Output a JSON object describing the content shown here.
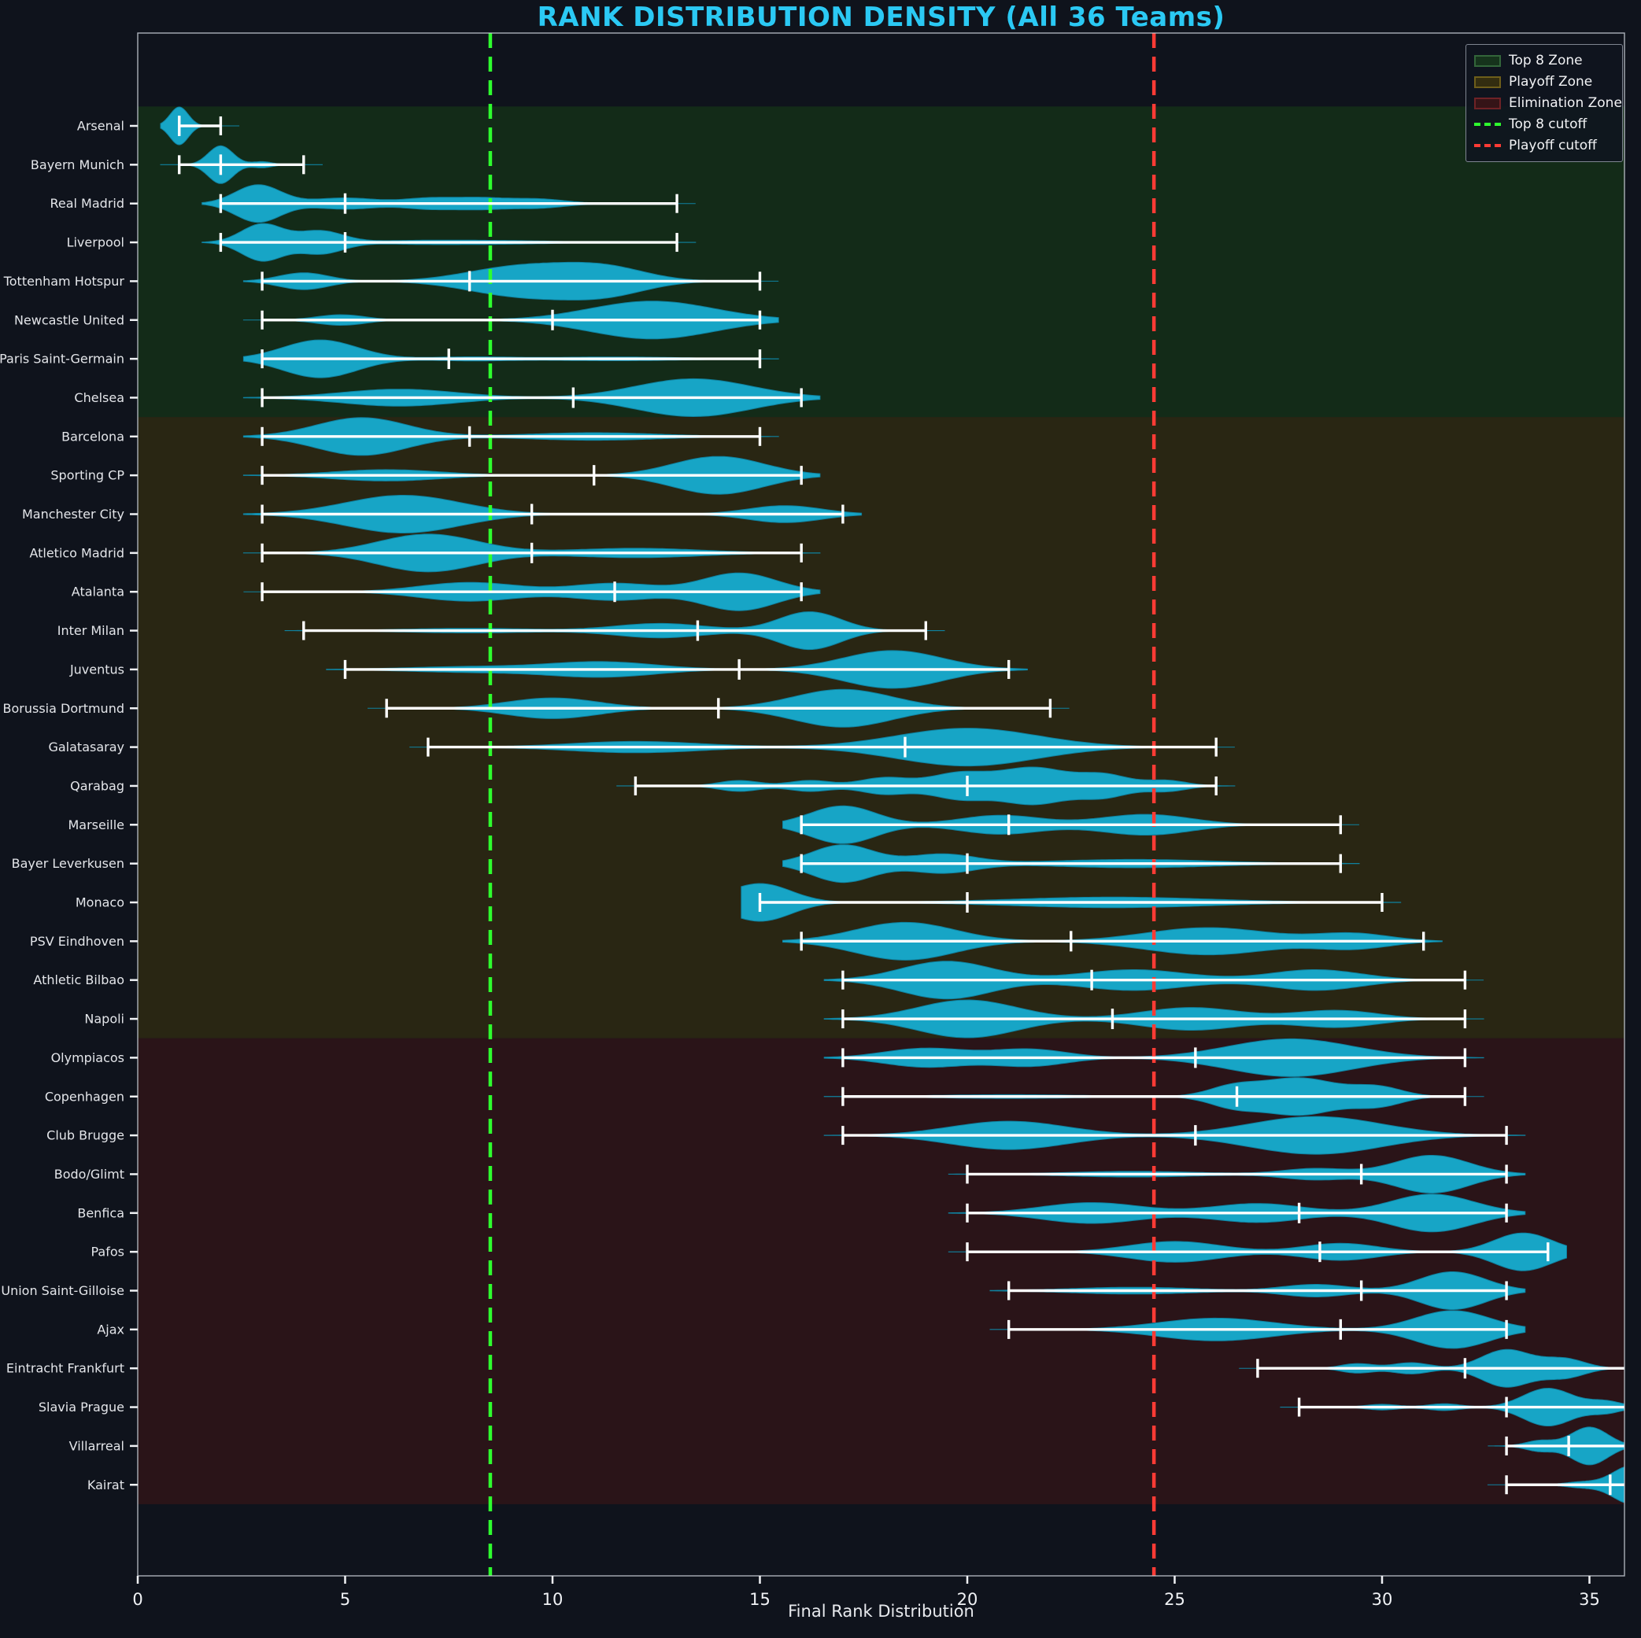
{
  "title": "RANK DISTRIBUTION DENSITY (All 36 Teams)",
  "xlabel": "Final Rank Distribution",
  "axis": {
    "x_ticks": [
      0,
      5,
      10,
      15,
      20,
      25,
      30,
      35
    ],
    "x_min": 0,
    "x_max": 36
  },
  "style": {
    "background": "#0f131c",
    "title_color": "#2bc9f4",
    "violin_fill": "#17a5c6",
    "violin_edge": "#0f82a0",
    "whisker_color": "#ffffff",
    "tick_label_color": "#f0f2f5",
    "team_label_color": "#e4e6ea",
    "spine_color": "#c7ccd4"
  },
  "zones": [
    {
      "label": "Top 8 Zone",
      "first_team": 1,
      "last_team": 8,
      "fill": "#132b18",
      "legend_fill": "#16331c",
      "legend_border": "#33663a"
    },
    {
      "label": "Playoff Zone",
      "first_team": 9,
      "last_team": 24,
      "fill": "#292613",
      "legend_fill": "#332d10",
      "legend_border": "#6e5e1a"
    },
    {
      "label": "Elimination Zone",
      "first_team": 25,
      "last_team": 36,
      "fill": "#2a1418",
      "legend_fill": "#351417",
      "legend_border": "#6e2226"
    }
  ],
  "cutoffs": [
    {
      "label": "Top 8 cutoff",
      "value": 8.5,
      "color": "#2eff2e"
    },
    {
      "label": "Playoff cutoff",
      "value": 24.5,
      "color": "#ff3b35"
    }
  ],
  "chart_data": {
    "type": "violin",
    "orientation": "horizontal",
    "x_range_note": "ranks 1 (best) to 36 (worst); peaks_cws = [center, weight, sigma] of density bumps",
    "teams": [
      {
        "name": "Arsenal",
        "min": 1,
        "max": 2,
        "median": 1,
        "peaks_cws": [
          [
            1,
            1,
            0.22
          ]
        ]
      },
      {
        "name": "Bayern Munich",
        "min": 1,
        "max": 4,
        "median": 2,
        "peaks_cws": [
          [
            2,
            1,
            0.3
          ],
          [
            3,
            0.16,
            0.25
          ]
        ]
      },
      {
        "name": "Real Madrid",
        "min": 2,
        "max": 13,
        "median": 5,
        "peaks_cws": [
          [
            2.9,
            1,
            0.55
          ],
          [
            5,
            0.3,
            0.8
          ],
          [
            7,
            0.27,
            0.6
          ],
          [
            8.2,
            0.27,
            0.6
          ],
          [
            9.6,
            0.25,
            0.7
          ]
        ]
      },
      {
        "name": "Liverpool",
        "min": 2,
        "max": 13,
        "median": 5,
        "peaks_cws": [
          [
            3,
            1,
            0.5
          ],
          [
            4.4,
            0.62,
            0.55
          ],
          [
            6.8,
            0.1,
            1.2
          ],
          [
            9,
            0.08,
            1.2
          ]
        ]
      },
      {
        "name": "Tottenham Hotspur",
        "min": 3,
        "max": 15,
        "median": 8,
        "peaks_cws": [
          [
            4,
            0.55,
            0.6
          ],
          [
            9.3,
            1,
            1.3
          ],
          [
            11.3,
            0.8,
            1.0
          ]
        ]
      },
      {
        "name": "Newcastle United",
        "min": 3,
        "max": 15,
        "median": 10,
        "peaks_cws": [
          [
            4.9,
            0.28,
            0.6
          ],
          [
            12.4,
            1,
            1.5
          ]
        ]
      },
      {
        "name": "Paris Saint-Germain",
        "min": 3,
        "max": 15,
        "median": 7.5,
        "peaks_cws": [
          [
            4.4,
            1,
            0.9
          ],
          [
            8,
            0.1,
            1.0
          ],
          [
            11.5,
            0.1,
            1.6
          ]
        ]
      },
      {
        "name": "Chelsea",
        "min": 3,
        "max": 16,
        "median": 10.5,
        "peaks_cws": [
          [
            6.3,
            0.45,
            1.4
          ],
          [
            13.4,
            1,
            1.4
          ]
        ]
      },
      {
        "name": "Barcelona",
        "min": 3,
        "max": 15,
        "median": 8,
        "peaks_cws": [
          [
            5.4,
            1,
            1.1
          ],
          [
            11,
            0.2,
            1.6
          ]
        ]
      },
      {
        "name": "Sporting CP",
        "min": 3,
        "max": 16,
        "median": 11,
        "peaks_cws": [
          [
            6,
            0.3,
            1.3
          ],
          [
            14,
            1,
            1.1
          ]
        ]
      },
      {
        "name": "Manchester City",
        "min": 3,
        "max": 17,
        "median": 9.5,
        "peaks_cws": [
          [
            6.4,
            1,
            1.4
          ],
          [
            15.6,
            0.45,
            0.9
          ]
        ]
      },
      {
        "name": "Atletico Madrid",
        "min": 3,
        "max": 16,
        "median": 9.5,
        "peaks_cws": [
          [
            7,
            1,
            1.2
          ],
          [
            12,
            0.25,
            1.6
          ]
        ]
      },
      {
        "name": "Atalanta",
        "min": 3,
        "max": 16,
        "median": 11.5,
        "peaks_cws": [
          [
            8,
            0.5,
            1.2
          ],
          [
            11.5,
            0.45,
            1.0
          ],
          [
            14.5,
            1,
            0.9
          ]
        ]
      },
      {
        "name": "Inter Milan",
        "min": 4,
        "max": 19,
        "median": 13.5,
        "peaks_cws": [
          [
            8,
            0.12,
            1.6
          ],
          [
            12.6,
            0.38,
            1.1
          ],
          [
            16.2,
            1,
            0.75
          ]
        ]
      },
      {
        "name": "Juventus",
        "min": 5,
        "max": 21,
        "median": 14.5,
        "peaks_cws": [
          [
            8,
            0.15,
            1.5
          ],
          [
            11.2,
            0.4,
            1.3
          ],
          [
            18.2,
            1,
            1.2
          ]
        ]
      },
      {
        "name": "Borussia Dortmund",
        "min": 6,
        "max": 22,
        "median": 14,
        "peaks_cws": [
          [
            10,
            0.55,
            1.1
          ],
          [
            17,
            1,
            1.2
          ]
        ]
      },
      {
        "name": "Galatasaray",
        "min": 7,
        "max": 26,
        "median": 18.5,
        "peaks_cws": [
          [
            12,
            0.3,
            1.6
          ],
          [
            20,
            1,
            1.7
          ]
        ]
      },
      {
        "name": "Qarabag",
        "min": 12,
        "max": 26,
        "median": 20,
        "peaks_cws": [
          [
            14.5,
            0.3,
            0.5
          ],
          [
            16.2,
            0.3,
            0.5
          ],
          [
            18,
            0.45,
            0.6
          ],
          [
            19.8,
            0.7,
            0.7
          ],
          [
            21.6,
            1,
            0.8
          ],
          [
            23.3,
            0.6,
            0.6
          ],
          [
            24.8,
            0.3,
            0.5
          ]
        ]
      },
      {
        "name": "Marseille",
        "min": 16,
        "max": 29,
        "median": 21,
        "peaks_cws": [
          [
            17,
            1,
            0.8
          ],
          [
            20.8,
            0.5,
            1.0
          ],
          [
            24.3,
            0.55,
            1.1
          ]
        ]
      },
      {
        "name": "Bayer Leverkusen",
        "min": 16,
        "max": 29,
        "median": 20,
        "peaks_cws": [
          [
            17,
            1,
            0.75
          ],
          [
            19.4,
            0.5,
            0.8
          ],
          [
            24,
            0.22,
            2.0
          ]
        ]
      },
      {
        "name": "Monaco",
        "min": 15,
        "max": 30,
        "median": 20,
        "peaks_cws": [
          [
            15,
            1,
            0.75
          ],
          [
            23.5,
            0.28,
            2.4
          ]
        ]
      },
      {
        "name": "PSV Eindhoven",
        "min": 16,
        "max": 31,
        "median": 22.5,
        "peaks_cws": [
          [
            18.5,
            1,
            1.2
          ],
          [
            25.8,
            0.72,
            1.5
          ],
          [
            29.3,
            0.4,
            0.9
          ]
        ]
      },
      {
        "name": "Athletic Bilbao",
        "min": 17,
        "max": 32,
        "median": 23,
        "peaks_cws": [
          [
            19.5,
            1,
            1.1
          ],
          [
            24,
            0.55,
            1.3
          ],
          [
            28.4,
            0.55,
            1.1
          ]
        ]
      },
      {
        "name": "Napoli",
        "min": 17,
        "max": 32,
        "median": 23.5,
        "peaks_cws": [
          [
            20,
            1,
            1.2
          ],
          [
            25.4,
            0.6,
            1.2
          ],
          [
            28.9,
            0.45,
            1.0
          ]
        ]
      },
      {
        "name": "Olympiacos",
        "min": 17,
        "max": 32,
        "median": 25.5,
        "peaks_cws": [
          [
            19,
            0.5,
            1.0
          ],
          [
            21.5,
            0.45,
            0.9
          ],
          [
            27.8,
            1,
            1.5
          ]
        ]
      },
      {
        "name": "Copenhagen",
        "min": 17,
        "max": 32,
        "median": 26.5,
        "peaks_cws": [
          [
            21,
            0.1,
            1.8
          ],
          [
            26.4,
            0.5,
            0.6
          ],
          [
            28,
            1,
            0.9
          ],
          [
            29.9,
            0.5,
            0.6
          ]
        ]
      },
      {
        "name": "Club Brugge",
        "min": 17,
        "max": 33,
        "median": 25.5,
        "peaks_cws": [
          [
            21,
            0.75,
            1.4
          ],
          [
            28.4,
            1,
            1.6
          ]
        ]
      },
      {
        "name": "Bodo/Glimt",
        "min": 20,
        "max": 33,
        "median": 29.5,
        "peaks_cws": [
          [
            24,
            0.15,
            1.6
          ],
          [
            28.4,
            0.3,
            0.8
          ],
          [
            31.2,
            1,
            0.9
          ]
        ]
      },
      {
        "name": "Benfica",
        "min": 20,
        "max": 33,
        "median": 28,
        "peaks_cws": [
          [
            23,
            0.55,
            1.2
          ],
          [
            27,
            0.5,
            1.1
          ],
          [
            31.2,
            1,
            1.0
          ]
        ]
      },
      {
        "name": "Pafos",
        "min": 20,
        "max": 34,
        "median": 28.5,
        "peaks_cws": [
          [
            25,
            0.55,
            1.1
          ],
          [
            29,
            0.45,
            0.9
          ],
          [
            33.4,
            1,
            0.7
          ]
        ]
      },
      {
        "name": "Union Saint-Gilloise",
        "min": 21,
        "max": 33,
        "median": 29.5,
        "peaks_cws": [
          [
            24,
            0.18,
            1.5
          ],
          [
            28.4,
            0.33,
            0.8
          ],
          [
            31.7,
            1,
            0.8
          ]
        ]
      },
      {
        "name": "Ajax",
        "min": 21,
        "max": 33,
        "median": 29,
        "peaks_cws": [
          [
            26,
            0.6,
            1.4
          ],
          [
            31.7,
            1,
            0.9
          ]
        ]
      },
      {
        "name": "Eintracht Frankfurt",
        "min": 27,
        "max": 36,
        "median": 32,
        "peaks_cws": [
          [
            29.4,
            0.25,
            0.4
          ],
          [
            30.7,
            0.3,
            0.45
          ],
          [
            33,
            1,
            0.6
          ],
          [
            34.4,
            0.5,
            0.5
          ]
        ]
      },
      {
        "name": "Slavia Prague",
        "min": 28,
        "max": 36,
        "median": 33,
        "peaks_cws": [
          [
            30,
            0.15,
            0.4
          ],
          [
            31.5,
            0.18,
            0.4
          ],
          [
            34,
            1,
            0.6
          ],
          [
            35.4,
            0.3,
            0.4
          ]
        ]
      },
      {
        "name": "Villarreal",
        "min": 33,
        "max": 36,
        "median": 34.5,
        "peaks_cws": [
          [
            33.8,
            0.28,
            0.35
          ],
          [
            35,
            1,
            0.45
          ]
        ]
      },
      {
        "name": "Kairat",
        "min": 33,
        "max": 36,
        "median": 35.5,
        "peaks_cws": [
          [
            34.8,
            0.15,
            0.4
          ],
          [
            36,
            1,
            0.45
          ]
        ]
      }
    ]
  }
}
